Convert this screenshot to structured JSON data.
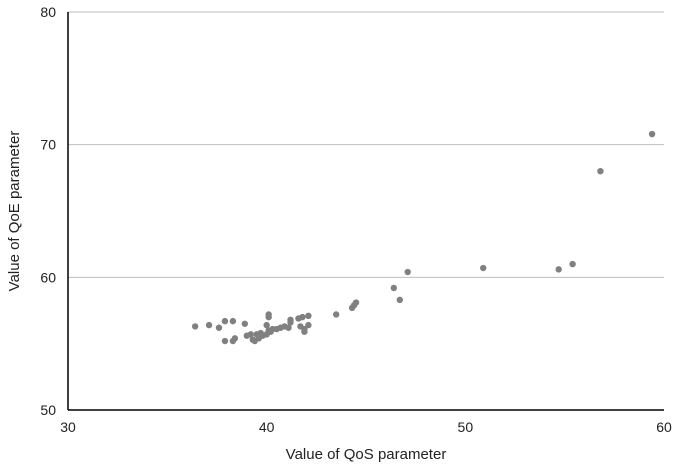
{
  "chart_data": {
    "type": "scatter",
    "title": "",
    "xlabel": "Value of QoS parameter",
    "ylabel": "Value of QoE parameter",
    "xlim": [
      30,
      60
    ],
    "ylim": [
      50,
      80
    ],
    "x_ticks": [
      "30",
      "40",
      "50",
      "60"
    ],
    "y_ticks": [
      "50",
      "60",
      "70",
      "80"
    ],
    "grid": "horizontal",
    "legend": "none",
    "point_color": "#808080",
    "series": [
      {
        "points": [
          [
            36.4,
            56.3
          ],
          [
            37.1,
            56.4
          ],
          [
            37.6,
            56.2
          ],
          [
            37.9,
            56.7
          ],
          [
            38.3,
            56.7
          ],
          [
            37.9,
            55.2
          ],
          [
            38.3,
            55.2
          ],
          [
            38.4,
            55.4
          ],
          [
            38.9,
            56.5
          ],
          [
            39.0,
            55.6
          ],
          [
            39.2,
            55.7
          ],
          [
            39.3,
            55.3
          ],
          [
            39.4,
            55.2
          ],
          [
            39.5,
            55.7
          ],
          [
            39.6,
            55.4
          ],
          [
            39.7,
            55.8
          ],
          [
            39.8,
            55.6
          ],
          [
            40.0,
            55.7
          ],
          [
            40.1,
            56.0
          ],
          [
            40.1,
            57.0
          ],
          [
            40.1,
            57.2
          ],
          [
            40.0,
            56.4
          ],
          [
            40.2,
            55.9
          ],
          [
            40.3,
            56.1
          ],
          [
            40.5,
            56.1
          ],
          [
            40.7,
            56.2
          ],
          [
            40.9,
            56.3
          ],
          [
            41.1,
            56.2
          ],
          [
            41.2,
            56.6
          ],
          [
            41.2,
            56.8
          ],
          [
            41.6,
            56.9
          ],
          [
            41.7,
            56.3
          ],
          [
            41.8,
            57.0
          ],
          [
            41.9,
            56.1
          ],
          [
            41.9,
            55.9
          ],
          [
            42.1,
            57.1
          ],
          [
            42.1,
            56.4
          ],
          [
            43.5,
            57.2
          ],
          [
            44.3,
            57.7
          ],
          [
            44.4,
            57.9
          ],
          [
            44.5,
            58.1
          ],
          [
            46.4,
            59.2
          ],
          [
            46.7,
            58.3
          ],
          [
            47.1,
            60.4
          ],
          [
            50.9,
            60.7
          ],
          [
            54.7,
            60.6
          ],
          [
            55.4,
            61.0
          ],
          [
            56.8,
            68.0
          ],
          [
            59.4,
            70.8
          ]
        ]
      }
    ]
  }
}
